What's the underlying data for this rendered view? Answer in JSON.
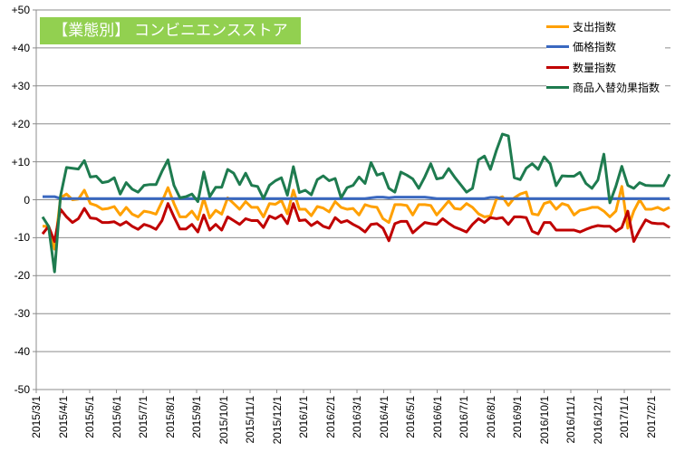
{
  "chart_data": {
    "type": "line",
    "title": "【業態別】 コンビニエンスストア",
    "xlabel": "",
    "ylabel": "",
    "ylim": [
      -50,
      50
    ],
    "yticks": [
      "+50",
      "+40",
      "+30",
      "+20",
      "+10",
      "0",
      "-10",
      "-20",
      "-30",
      "-40",
      "-50"
    ],
    "ytick_values": [
      50,
      40,
      30,
      20,
      10,
      0,
      -10,
      -20,
      -30,
      -40,
      -50
    ],
    "xticks": [
      "2015/3/1",
      "2015/4/1",
      "2015/5/1",
      "2015/6/1",
      "2015/7/1",
      "2015/8/1",
      "2015/9/1",
      "2015/10/1",
      "2015/11/1",
      "2015/12/1",
      "2016/1/1",
      "2016/2/1",
      "2016/3/1",
      "2016/4/1",
      "2016/5/1",
      "2016/6/1",
      "2016/7/1",
      "2016/8/1",
      "2016/9/1",
      "2016/10/1",
      "2016/11/1",
      "2016/12/1",
      "2017/1/1",
      "2017/2/1"
    ],
    "x_frequency": "weekly",
    "grid": true,
    "legend_position": "top-right",
    "series": [
      {
        "name": "支出指数",
        "color": "#FFA000",
        "values": [
          -7,
          -7,
          -13,
          0.5,
          1.5,
          0,
          0.2,
          2.5,
          -1,
          -1.5,
          -2.5,
          -2.3,
          -1.8,
          -4,
          -2,
          -3.8,
          -4.5,
          -3,
          -3.3,
          -3.8,
          -0.5,
          3.2,
          -1,
          -4.5,
          -4.5,
          -3,
          -5.2,
          0.3,
          -4.8,
          -2.8,
          -3.8,
          0.5,
          -1,
          -2.5,
          -0.5,
          -2,
          -2,
          -4.5,
          -1,
          -1.2,
          -0.2,
          -3.7,
          2.5,
          -2.5,
          -2.5,
          -4.2,
          -1.8,
          -2.2,
          -3.2,
          -0.5,
          -2,
          -2.5,
          -2.3,
          -4,
          -1.3,
          -1.8,
          -2,
          -5,
          -6,
          -1.3,
          -1.3,
          -1.5,
          -4,
          -1.3,
          -1.3,
          -1.5,
          -4,
          -2.2,
          -0.3,
          -2.3,
          -2.5,
          -1,
          -2,
          -3.7,
          -4.5,
          -4.3,
          0.2,
          0.8,
          -1.5,
          0.5,
          1.5,
          2.0,
          -3.7,
          -4,
          -1,
          -0.5,
          -2.5,
          -1,
          -1.5,
          -4,
          -2.8,
          -2.5,
          -2,
          -2,
          -3,
          -4.5,
          -3,
          3.5,
          -7.5,
          -3,
          0,
          -2.5,
          -2.5,
          -2,
          -2.8,
          -2
        ]
      },
      {
        "name": "価格指数",
        "color": "#3A68C0",
        "values": [
          0.8,
          0.8,
          0.8,
          0.3,
          0.3,
          0.3,
          0.3,
          0.3,
          0.3,
          0.3,
          0.3,
          0.3,
          0.3,
          0.3,
          0.3,
          0.3,
          0.3,
          0.3,
          0.3,
          0.3,
          0.3,
          0.3,
          0.3,
          0.3,
          0.3,
          0.3,
          0.3,
          0.3,
          0.3,
          0.3,
          0.3,
          0.3,
          0.3,
          0.3,
          0.3,
          0.3,
          0.3,
          0.3,
          0.3,
          0.3,
          0.3,
          0.3,
          0.3,
          0.3,
          0.3,
          0.3,
          0.3,
          0.3,
          0.3,
          0.3,
          0.3,
          0.3,
          0.3,
          0.3,
          0.3,
          0.5,
          0.7,
          0.7,
          0.5,
          0.7,
          0.7,
          0.7,
          0.7,
          0.7,
          0.7,
          0.5,
          0.3,
          0.3,
          0.3,
          0.3,
          0.3,
          0.3,
          0.3,
          0.3,
          0.3,
          0.6,
          0.6,
          0.3,
          0.3,
          0.3,
          0.3,
          0.3,
          0.3,
          0.3,
          0.3,
          0.3,
          0.3,
          0.3,
          0.3,
          0.3,
          0.3,
          0.3,
          0.3,
          0.3,
          0.3,
          0.3,
          0.3,
          0.3,
          0.3,
          0.3,
          0.3,
          0.3,
          0.3,
          0.3,
          0.3,
          0.3
        ]
      },
      {
        "name": "数量指数",
        "color": "#C00000",
        "values": [
          -9,
          -7,
          -11,
          -2.5,
          -4.5,
          -6,
          -5,
          -2.3,
          -4.8,
          -5,
          -6,
          -6,
          -5.8,
          -6.7,
          -5.8,
          -7,
          -7.8,
          -6.5,
          -7,
          -7.8,
          -5.5,
          -1,
          -4.5,
          -7.7,
          -7.7,
          -6.5,
          -8.5,
          -4,
          -8,
          -6.5,
          -8,
          -4.5,
          -5.5,
          -6.5,
          -5,
          -5.5,
          -5.5,
          -7.3,
          -4.3,
          -5,
          -4,
          -6.3,
          -1,
          -5.5,
          -5.3,
          -6.8,
          -5.8,
          -7,
          -7.5,
          -4.7,
          -6,
          -5.5,
          -6.5,
          -7.3,
          -8.5,
          -6.5,
          -6.3,
          -7.5,
          -10.8,
          -6.3,
          -5.7,
          -5.7,
          -8.7,
          -7.3,
          -6,
          -6.3,
          -6.5,
          -5,
          -6.2,
          -7.2,
          -7.8,
          -8.5,
          -6.5,
          -5,
          -6,
          -4.7,
          -5,
          -4.7,
          -6.5,
          -4.5,
          -4.5,
          -4.7,
          -8.3,
          -9,
          -6,
          -6,
          -8,
          -8,
          -8,
          -8,
          -8.5,
          -7.8,
          -7.2,
          -6.8,
          -7,
          -7,
          -8.3,
          -7.3,
          -3,
          -11,
          -8,
          -5.3,
          -6.1,
          -6.3,
          -6.3,
          -7.3
        ]
      },
      {
        "name": "商品入替効果指数",
        "color": "#1E7B4F",
        "values": [
          -4.5,
          -7,
          -19,
          1,
          8.5,
          8.3,
          8.1,
          10.3,
          6,
          6.2,
          4.5,
          4.8,
          5.8,
          1.5,
          4.5,
          2.8,
          2,
          3.8,
          4,
          4,
          7.5,
          10.5,
          3.8,
          0.5,
          0.8,
          1.5,
          -0.5,
          7.3,
          0.8,
          3.3,
          3.3,
          8,
          7,
          4,
          7,
          3.8,
          3.5,
          0.3,
          3.8,
          5,
          5.8,
          1.2,
          8.7,
          1.9,
          2.5,
          1.3,
          5.3,
          6.3,
          5,
          5.6,
          0.5,
          3.2,
          3.8,
          6,
          4.3,
          9.8,
          6.5,
          7,
          3,
          2,
          7.3,
          6.5,
          5.5,
          3,
          6,
          9.5,
          5.5,
          5.8,
          8.2,
          6,
          4,
          2,
          3,
          10.5,
          11.5,
          8,
          13,
          17.3,
          16.8,
          5.8,
          5.3,
          8.3,
          9.5,
          8,
          11.3,
          9.5,
          3.7,
          6.3,
          6.2,
          6.2,
          7.2,
          4.3,
          3,
          5.2,
          12,
          -0.8,
          3.5,
          8.8,
          3.8,
          3,
          4.5,
          3.8,
          3.7,
          3.7,
          3.7,
          6.7
        ]
      }
    ]
  }
}
